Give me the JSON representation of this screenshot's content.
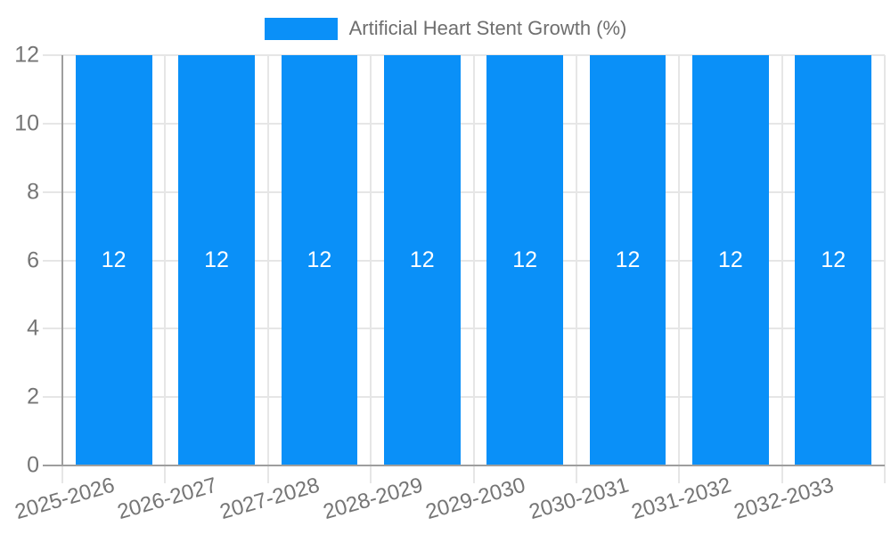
{
  "chart_data": {
    "type": "bar",
    "title": "Artificial Heart Stent Growth (%)",
    "categories": [
      "2025-2026",
      "2026-2027",
      "2027-2028",
      "2028-2029",
      "2029-2030",
      "2030-2031",
      "2031-2032",
      "2032-2033"
    ],
    "series": [
      {
        "name": "Artificial Heart Stent Growth (%)",
        "values": [
          12,
          12,
          12,
          12,
          12,
          12,
          12,
          12
        ]
      }
    ],
    "values": [
      12,
      12,
      12,
      12,
      12,
      12,
      12,
      12
    ],
    "bar_value_labels": [
      "12",
      "12",
      "12",
      "12",
      "12",
      "12",
      "12",
      "12"
    ],
    "xlabel": "",
    "ylabel": "",
    "ylim": [
      0,
      12
    ],
    "y_ticks": [
      0,
      2,
      4,
      6,
      8,
      10,
      12
    ],
    "grid": true,
    "legend_position": "top-center",
    "x_tick_rotation_deg": -16,
    "colors": {
      "bar": "#0a90f8",
      "grid": "#e6e6e6",
      "axis": "#9e9e9e",
      "tick_text": "#757575",
      "title_text": "#6e6e6e",
      "bar_label_text": "#ffffff",
      "background": "#ffffff"
    }
  }
}
